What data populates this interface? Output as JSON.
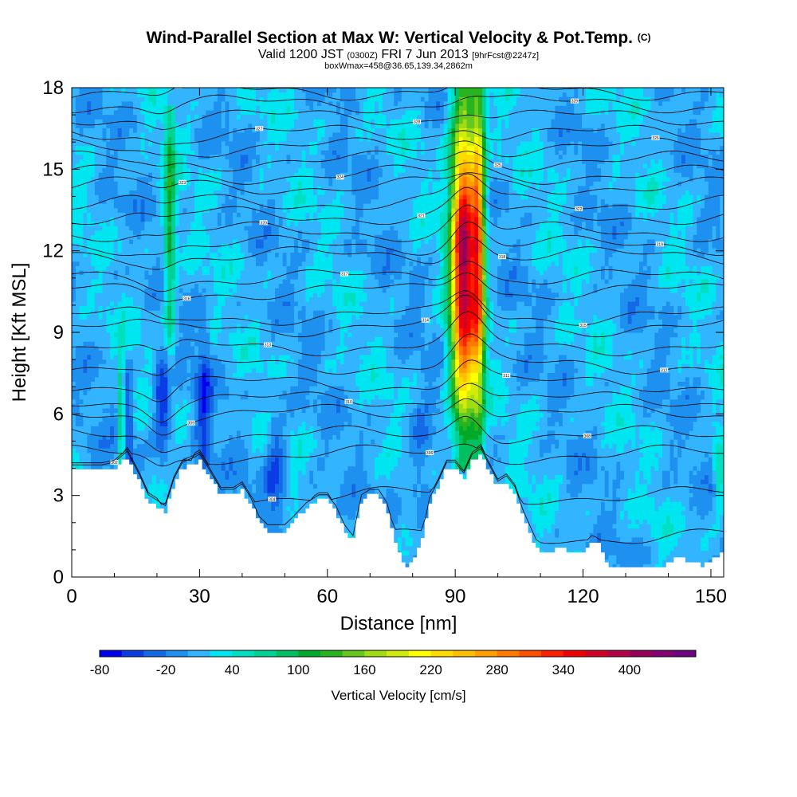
{
  "title": "Wind-Parallel Section at Max W: Vertical Velocity & Pot.Temp.",
  "copyright_mark": "(C)",
  "subtitle_main": "Valid 1200 JST",
  "subtitle_utc": "(0300Z)",
  "subtitle_date": "FRI 7 Jun 2013",
  "subtitle_fcst": "[9hrFcst@2247z]",
  "note": "boxWmax=458@36.65,139.34,2862m",
  "chart_data": {
    "type": "heatmap",
    "xlabel": "Distance [nm]",
    "ylabel": "Height [Kft MSL]",
    "xlim": [
      0,
      153
    ],
    "ylim": [
      0,
      18
    ],
    "x_ticks": [
      "0",
      "30",
      "60",
      "90",
      "120",
      "150"
    ],
    "y_ticks": [
      "0",
      "3",
      "6",
      "9",
      "12",
      "15",
      "18"
    ],
    "grid": false,
    "colorbar": {
      "label": "Vertical Velocity [cm/s]",
      "tick_labels": [
        "-80",
        "-20",
        "40",
        "100",
        "160",
        "220",
        "280",
        "340",
        "400"
      ],
      "bins": [
        -80,
        -60,
        -40,
        -20,
        0,
        20,
        40,
        60,
        80,
        100,
        120,
        140,
        160,
        180,
        200,
        220,
        240,
        260,
        280,
        300,
        320,
        340,
        360,
        380,
        400,
        420,
        440,
        460
      ],
      "colors": [
        "#0000f0",
        "#0a3ce6",
        "#1469e6",
        "#1e90f0",
        "#32b4ff",
        "#00e6f0",
        "#00e0c0",
        "#00d296",
        "#00c060",
        "#00aa28",
        "#28b41e",
        "#64c81e",
        "#a0dc14",
        "#d2eb0a",
        "#ffff00",
        "#ffdc00",
        "#ffbe00",
        "#ffa000",
        "#ff7800",
        "#ff5000",
        "#ff1e00",
        "#f00000",
        "#d20028",
        "#b40046",
        "#96005a",
        "#820073",
        "#6e0082"
      ]
    },
    "background_w": 10,
    "features": [
      {
        "kind": "updraft",
        "x": 92,
        "x_half_width": 3.5,
        "y_from": 4.2,
        "y_to": 18,
        "w_max": 400,
        "peak_y": 11.5
      },
      {
        "kind": "updraft",
        "x": 95.5,
        "x_half_width": 1.8,
        "y_from": 4.5,
        "y_to": 18,
        "w_max": 250,
        "peak_y": 12
      },
      {
        "kind": "updraft",
        "x": 23,
        "x_half_width": 1.6,
        "y_from": 6,
        "y_to": 17,
        "w_max": 110,
        "peak_y": 13
      },
      {
        "kind": "updraft",
        "x": 11.5,
        "x_half_width": 0.8,
        "y_from": 4,
        "y_to": 9,
        "w_max": 90,
        "peak_y": 6
      },
      {
        "kind": "updraft",
        "x": 152,
        "x_half_width": 1.5,
        "y_from": 2,
        "y_to": 6,
        "w_max": 70,
        "peak_y": 4
      },
      {
        "kind": "downdraft",
        "x": 21.5,
        "x_half_width": 2.5,
        "y_from": 3.8,
        "y_to": 9,
        "w_min": -70,
        "peak_y": 6.5
      },
      {
        "kind": "downdraft",
        "x": 13.5,
        "x_half_width": 1.2,
        "y_from": 4,
        "y_to": 8,
        "w_min": -50,
        "peak_y": 5.5
      },
      {
        "kind": "downdraft",
        "x": 31,
        "x_half_width": 2,
        "y_from": 3.5,
        "y_to": 10,
        "w_min": -45,
        "peak_y": 6
      },
      {
        "kind": "downdraft",
        "x": 48,
        "x_half_width": 3,
        "y_from": 2,
        "y_to": 7,
        "w_min": -45,
        "peak_y": 4
      },
      {
        "kind": "downdraft",
        "x": 82,
        "x_half_width": 3,
        "y_from": 1,
        "y_to": 6,
        "w_min": -30,
        "peak_y": 4
      }
    ],
    "terrain_height_kft": [
      [
        0,
        3.9
      ],
      [
        7,
        3.9
      ],
      [
        10,
        4.0
      ],
      [
        13,
        4.4
      ],
      [
        16,
        3.5
      ],
      [
        18,
        2.8
      ],
      [
        20,
        2.6
      ],
      [
        22,
        2.4
      ],
      [
        24,
        3.4
      ],
      [
        26,
        4.0
      ],
      [
        29,
        4.2
      ],
      [
        30,
        4.3
      ],
      [
        32,
        3.8
      ],
      [
        35,
        3.0
      ],
      [
        38,
        3.0
      ],
      [
        40,
        3.2
      ],
      [
        42,
        2.7
      ],
      [
        44,
        2.0
      ],
      [
        46,
        1.7
      ],
      [
        48,
        1.7
      ],
      [
        50,
        1.7
      ],
      [
        52,
        2.0
      ],
      [
        55,
        2.5
      ],
      [
        58,
        2.8
      ],
      [
        60,
        2.8
      ],
      [
        62,
        2.4
      ],
      [
        64,
        1.7
      ],
      [
        66,
        1.3
      ],
      [
        68,
        2.8
      ],
      [
        70,
        3.0
      ],
      [
        72,
        3.0
      ],
      [
        74,
        2.5
      ],
      [
        76,
        1.3
      ],
      [
        78,
        0.4
      ],
      [
        80,
        0.5
      ],
      [
        82,
        1.2
      ],
      [
        84,
        2.7
      ],
      [
        86,
        3.3
      ],
      [
        88,
        4.0
      ],
      [
        90,
        4.0
      ],
      [
        92,
        3.6
      ],
      [
        94,
        4.3
      ],
      [
        96,
        4.5
      ],
      [
        98,
        3.9
      ],
      [
        100,
        3.3
      ],
      [
        102,
        3.5
      ],
      [
        104,
        3.1
      ],
      [
        106,
        2.2
      ],
      [
        108,
        1.5
      ],
      [
        110,
        0.8
      ],
      [
        112,
        0.9
      ],
      [
        114,
        1.0
      ],
      [
        116,
        1.0
      ],
      [
        118,
        0.9
      ],
      [
        120,
        0.9
      ],
      [
        122,
        1.3
      ],
      [
        124,
        1.2
      ],
      [
        126,
        0.4
      ],
      [
        128,
        0.3
      ],
      [
        132,
        0.3
      ],
      [
        136,
        0.3
      ],
      [
        138,
        0.3
      ],
      [
        140,
        0.5
      ],
      [
        142,
        0.8
      ],
      [
        144,
        0.6
      ],
      [
        146,
        0.6
      ],
      [
        148,
        0.4
      ],
      [
        150,
        0.6
      ],
      [
        152,
        0.8
      ],
      [
        153,
        1.0
      ]
    ],
    "theta_isolines": [
      {
        "base_kft": 1.5,
        "label": "302"
      },
      {
        "base_kft": 3.0,
        "label": "304"
      },
      {
        "base_kft": 4.5,
        "label": "306"
      },
      {
        "base_kft": 5.2,
        "label": "308"
      },
      {
        "base_kft": 6.0,
        "label": "309"
      },
      {
        "base_kft": 6.5,
        "label": "310"
      },
      {
        "base_kft": 7.1,
        "label": "311"
      },
      {
        "base_kft": 7.8,
        "label": "312"
      },
      {
        "base_kft": 8.5,
        "label": "313"
      },
      {
        "base_kft": 9.2,
        "label": "314"
      },
      {
        "base_kft": 9.6,
        "label": "315"
      },
      {
        "base_kft": 10.5,
        "label": "316"
      },
      {
        "base_kft": 11.0,
        "label": "317"
      },
      {
        "base_kft": 11.8,
        "label": "318"
      },
      {
        "base_kft": 12.2,
        "label": "319"
      },
      {
        "base_kft": 12.7,
        "label": "320"
      },
      {
        "base_kft": 13.3,
        "label": "321"
      },
      {
        "base_kft": 13.8,
        "label": "322"
      },
      {
        "base_kft": 14.4,
        "label": "323"
      },
      {
        "base_kft": 14.8,
        "label": "324"
      },
      {
        "base_kft": 15.3,
        "label": "325"
      },
      {
        "base_kft": 15.8,
        "label": "326"
      },
      {
        "base_kft": 16.3,
        "label": "327"
      },
      {
        "base_kft": 16.9,
        "label": "328"
      },
      {
        "base_kft": 17.4,
        "label": "329"
      },
      {
        "base_kft": 17.9,
        "label": "330"
      }
    ]
  }
}
